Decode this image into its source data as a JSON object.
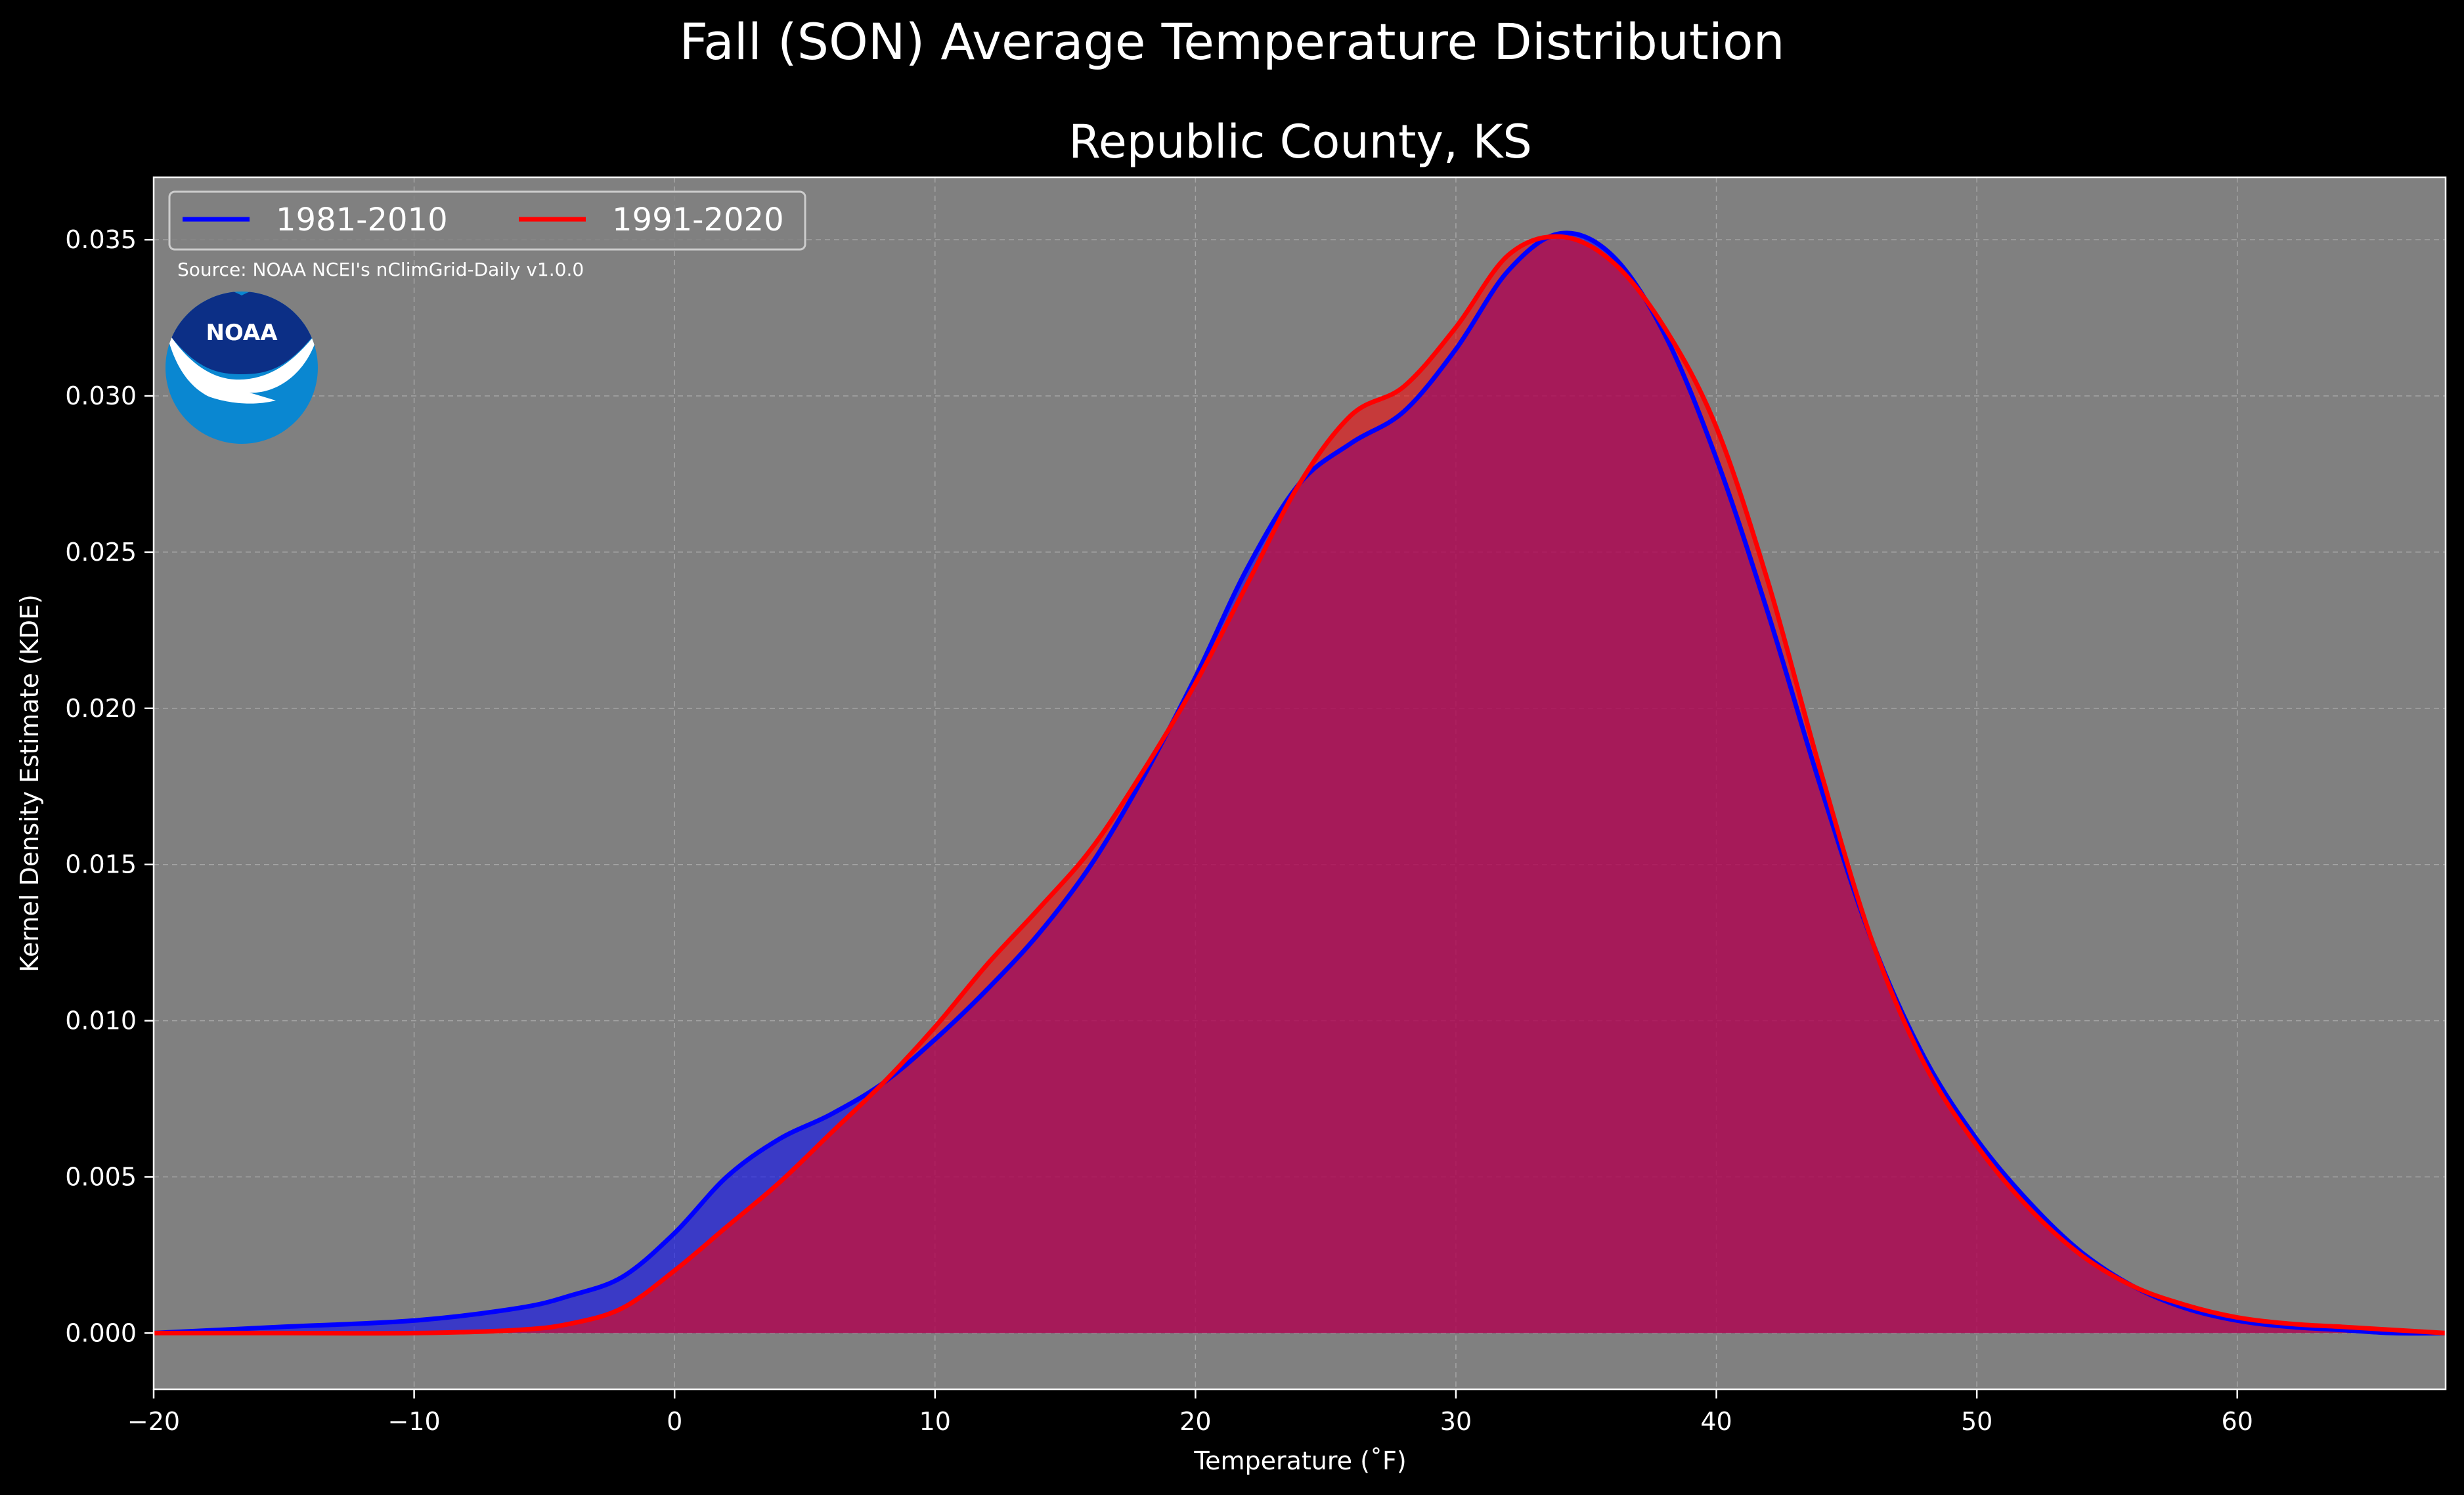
{
  "chart_data": {
    "type": "area",
    "suptitle": "Fall (SON) Average Temperature Distribution",
    "title": "Republic County, KS",
    "xlabel": "Temperature ($^\\circ$F)",
    "xlabel_display": "Temperature (˚F)",
    "ylabel": "Kernel Density Estimate (KDE)",
    "xlim": [
      -20,
      68
    ],
    "ylim": [
      -0.0018,
      0.037
    ],
    "x_ticks": [
      -20,
      -10,
      0,
      10,
      20,
      30,
      40,
      50,
      60
    ],
    "x_tick_labels": [
      "−20",
      "−10",
      "0",
      "10",
      "20",
      "30",
      "40",
      "50",
      "60"
    ],
    "y_ticks": [
      0.0,
      0.005,
      0.01,
      0.015,
      0.02,
      0.025,
      0.03,
      0.035
    ],
    "y_tick_labels": [
      "0.000",
      "0.005",
      "0.010",
      "0.015",
      "0.020",
      "0.025",
      "0.030",
      "0.035"
    ],
    "grid": true,
    "legend_position": "top-left",
    "source": "Source: NOAA NCEI's nClimGrid-Daily v1.0.0",
    "logo_text": "NOAA",
    "colors": {
      "background": "#000000",
      "plot_bg": "#808080",
      "series_1": "#0000ff",
      "series_2": "#ff0000",
      "overlap_fill": "#9b1b5c",
      "grid": "#b4b4b4"
    },
    "series": [
      {
        "name": "1981-2010",
        "color": "#0000ff",
        "x": [
          -20,
          -15,
          -10,
          -6,
          -4,
          -2,
          0,
          2,
          4,
          6,
          8,
          10,
          12,
          14,
          16,
          18,
          20,
          22,
          24,
          26,
          28,
          30,
          32,
          34,
          36,
          38,
          40,
          42,
          44,
          46,
          48,
          50,
          52,
          54,
          56,
          58,
          60,
          62,
          64,
          66,
          68
        ],
        "y": [
          0.0,
          0.0002,
          0.0004,
          0.0008,
          0.0012,
          0.0018,
          0.0032,
          0.005,
          0.0062,
          0.007,
          0.008,
          0.0094,
          0.011,
          0.0128,
          0.015,
          0.0178,
          0.021,
          0.0245,
          0.0272,
          0.0285,
          0.0295,
          0.0315,
          0.034,
          0.0352,
          0.0345,
          0.032,
          0.028,
          0.023,
          0.0175,
          0.0125,
          0.0088,
          0.0062,
          0.0042,
          0.0026,
          0.0015,
          0.0008,
          0.0004,
          0.0002,
          0.0001,
          0.0,
          0.0
        ]
      },
      {
        "name": "1991-2020",
        "color": "#ff0000",
        "x": [
          -20,
          -15,
          -10,
          -6,
          -4,
          -2,
          0,
          2,
          4,
          6,
          8,
          10,
          12,
          14,
          16,
          18,
          20,
          22,
          24,
          26,
          28,
          30,
          32,
          34,
          36,
          38,
          40,
          42,
          44,
          46,
          48,
          50,
          52,
          54,
          56,
          58,
          60,
          62,
          64,
          66,
          68
        ],
        "y": [
          0.0,
          0.0,
          0.0,
          0.0001,
          0.0003,
          0.0008,
          0.002,
          0.0034,
          0.0048,
          0.0064,
          0.008,
          0.0098,
          0.0118,
          0.0136,
          0.0155,
          0.018,
          0.0208,
          0.024,
          0.0272,
          0.0294,
          0.0303,
          0.0322,
          0.0345,
          0.0351,
          0.0343,
          0.0322,
          0.029,
          0.024,
          0.018,
          0.0125,
          0.0086,
          0.006,
          0.004,
          0.0025,
          0.0015,
          0.0009,
          0.0005,
          0.0003,
          0.0002,
          0.0001,
          0.0
        ]
      }
    ]
  }
}
